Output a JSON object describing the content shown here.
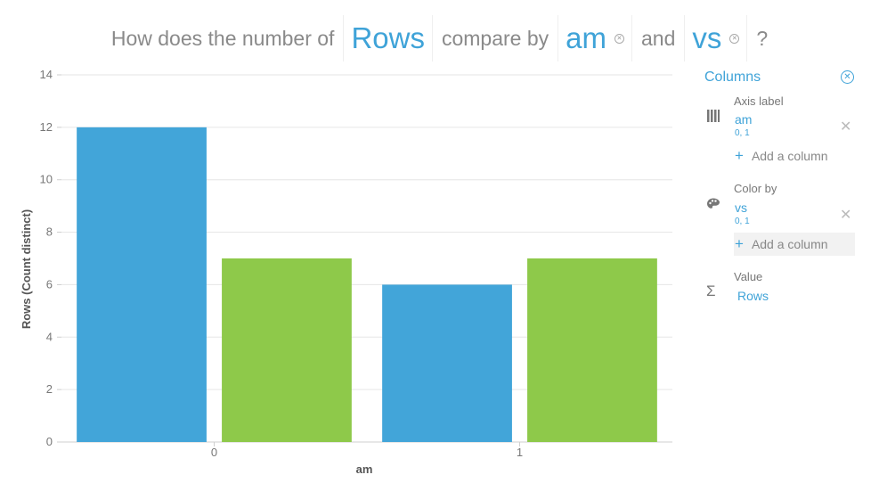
{
  "question": {
    "prefix": "How does the number of",
    "metric": "Rows",
    "middle": "compare by",
    "dim1": "am",
    "conj": "and",
    "dim2": "vs",
    "suffix": "?"
  },
  "chart_data": {
    "type": "bar",
    "categories": [
      "0",
      "1"
    ],
    "series": [
      {
        "values": [
          12,
          6
        ],
        "color": "#42a5d9"
      },
      {
        "values": [
          7,
          7
        ],
        "color": "#8ec94a"
      }
    ],
    "xlabel": "am",
    "ylabel": "Rows (Count distinct)",
    "ylim": [
      0,
      14
    ],
    "yticks": [
      0,
      2,
      4,
      6,
      8,
      10,
      12,
      14
    ],
    "grid": true,
    "legend": "none"
  },
  "panel": {
    "title": "Columns",
    "axis": {
      "label": "Axis label",
      "field": "am",
      "values": "0, 1",
      "icon": "columns-icon"
    },
    "color": {
      "label": "Color by",
      "field": "vs",
      "values": "0, 1",
      "icon": "palette-icon"
    },
    "add_column": "Add a column",
    "value": {
      "label": "Value",
      "field": "Rows",
      "icon": "sigma-icon"
    }
  }
}
